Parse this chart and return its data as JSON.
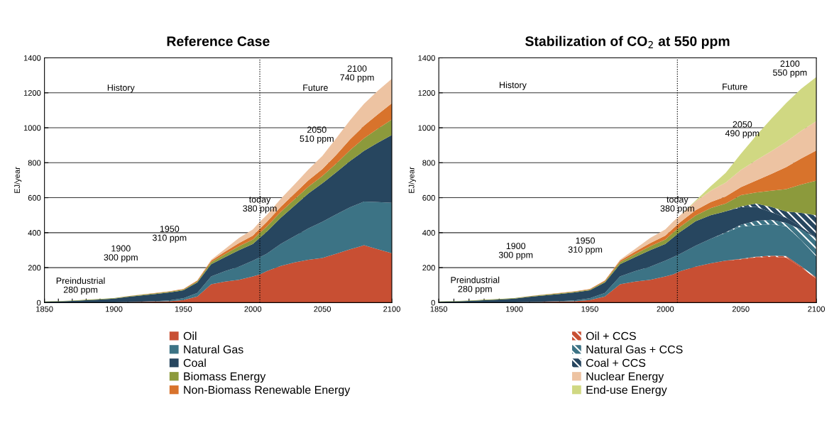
{
  "chart_data": [
    {
      "type": "area",
      "stacked": true,
      "title": "Reference Case",
      "ylabel": "EJ/year",
      "x": [
        1850,
        1860,
        1870,
        1880,
        1890,
        1900,
        1910,
        1920,
        1930,
        1940,
        1950,
        1960,
        1970,
        1980,
        1990,
        2000,
        2005,
        2010,
        2020,
        2030,
        2040,
        2050,
        2060,
        2070,
        2080,
        2090,
        2100
      ],
      "series": [
        {
          "name": "Oil",
          "color": "#c84f33",
          "values": [
            0,
            0,
            0,
            0,
            0,
            1,
            2,
            4,
            6,
            8,
            15,
            35,
            105,
            120,
            130,
            150,
            161,
            180,
            210,
            230,
            245,
            255,
            280,
            305,
            328,
            305,
            283
          ]
        },
        {
          "name": "Natural Gas",
          "color": "#3c7385",
          "values": [
            0,
            0,
            0,
            0,
            0,
            0,
            1,
            2,
            3,
            5,
            10,
            20,
            45,
            60,
            75,
            90,
            98,
            100,
            125,
            150,
            180,
            207,
            225,
            240,
            250,
            270,
            288
          ]
        },
        {
          "name": "Coal",
          "color": "#27465f",
          "values": [
            5,
            7,
            10,
            14,
            18,
            22,
            30,
            35,
            40,
            45,
            45,
            60,
            70,
            80,
            95,
            95,
            112,
            125,
            150,
            175,
            200,
            220,
            240,
            265,
            290,
            340,
            388
          ]
        },
        {
          "name": "Biomass Energy",
          "color": "#8c9a3c",
          "values": [
            2,
            2,
            2,
            3,
            3,
            3,
            3,
            4,
            4,
            4,
            5,
            6,
            12,
            18,
            22,
            26,
            28,
            30,
            33,
            36,
            38,
            42,
            50,
            62,
            72,
            80,
            88
          ]
        },
        {
          "name": "Non-Biomass Renewable Energy",
          "color": "#d8732c",
          "values": [
            0,
            0,
            0,
            0,
            0,
            0,
            1,
            1,
            2,
            2,
            3,
            5,
            8,
            14,
            18,
            22,
            24,
            26,
            30,
            33,
            37,
            40,
            50,
            62,
            72,
            82,
            93
          ]
        },
        {
          "color": "#edc3a2",
          "values": [
            0,
            0,
            0,
            0,
            0,
            0,
            0,
            0,
            0,
            0,
            0,
            1,
            5,
            15,
            30,
            36,
            39,
            40,
            45,
            52,
            62,
            75,
            95,
            110,
            125,
            135,
            140
          ]
        }
      ],
      "xlim": [
        1850,
        2100
      ],
      "xticks": [
        1850,
        {
          "value": 1860,
          "label": null
        },
        {
          "value": 1870,
          "label": null
        },
        {
          "value": 1880,
          "label": null
        },
        {
          "value": 1890,
          "label": null
        },
        1900,
        {
          "value": 1910,
          "label": null
        },
        {
          "value": 1920,
          "label": null
        },
        {
          "value": 1930,
          "label": null
        },
        {
          "value": 1940,
          "label": null
        },
        1950,
        {
          "value": 1960,
          "label": null
        },
        {
          "value": 1970,
          "label": null
        },
        {
          "value": 1980,
          "label": null
        },
        {
          "value": 1990,
          "label": null
        },
        2000,
        {
          "value": 2010,
          "label": null
        },
        {
          "value": 2020,
          "label": null
        },
        {
          "value": 2030,
          "label": null
        },
        {
          "value": 2040,
          "label": null
        },
        2050,
        {
          "value": 2060,
          "label": null
        },
        {
          "value": 2070,
          "label": null
        },
        {
          "value": 2080,
          "label": null
        },
        {
          "value": 2090,
          "label": null
        },
        2100
      ],
      "ylim": [
        0,
        1400
      ],
      "yticks": [
        0,
        200,
        400,
        600,
        800,
        1000,
        1200,
        1400
      ],
      "grid": "y",
      "legend": "bottom",
      "ref_lines": [
        {
          "axis": "x",
          "value": 2005,
          "color": "#000000",
          "line_style": "dotted"
        }
      ],
      "annotations": [
        "History",
        "Future",
        "Preindustrial\n280 ppm",
        "1900\n300 ppm",
        "1950\n310 ppm",
        "today\n380 ppm",
        "2050\n510 ppm",
        "2100\n740 ppm"
      ]
    },
    {
      "type": "area",
      "stacked": true,
      "title": "Stabilization of CO$_{2}$ at 550 ppm",
      "ylabel": "EJ/year",
      "x": [
        1850,
        1860,
        1870,
        1880,
        1890,
        1900,
        1910,
        1920,
        1930,
        1940,
        1950,
        1960,
        1970,
        1980,
        1990,
        2000,
        2005,
        2010,
        2020,
        2030,
        2040,
        2050,
        2060,
        2070,
        2080,
        2090,
        2100
      ],
      "series": [
        {
          "color": "#c84f33",
          "values": [
            0,
            0,
            0,
            0,
            0,
            1,
            2,
            4,
            6,
            8,
            15,
            35,
            105,
            120,
            130,
            150,
            161,
            180,
            205,
            225,
            240,
            248,
            258,
            262,
            258,
            200,
            137
          ]
        },
        {
          "name": "Oil + CCS",
          "color": "#c84f33",
          "values": [
            0,
            0,
            0,
            0,
            0,
            0,
            0,
            0,
            0,
            0,
            0,
            0,
            0,
            0,
            0,
            0,
            0,
            0,
            0,
            0,
            0,
            2,
            4,
            6,
            8,
            8,
            8
          ]
        },
        {
          "color": "#3c7385",
          "values": [
            0,
            0,
            0,
            0,
            0,
            0,
            1,
            2,
            3,
            5,
            10,
            20,
            45,
            60,
            75,
            90,
            98,
            100,
            120,
            140,
            160,
            185,
            180,
            180,
            170,
            150,
            119
          ]
        },
        {
          "name": "Natural Gas + CCS",
          "color": "#3c7385",
          "values": [
            0,
            0,
            0,
            0,
            0,
            0,
            0,
            0,
            0,
            0,
            0,
            0,
            0,
            0,
            0,
            0,
            0,
            0,
            0,
            0,
            2,
            10,
            25,
            25,
            20,
            60,
            106
          ]
        },
        {
          "color": "#27465f",
          "values": [
            5,
            7,
            10,
            14,
            18,
            22,
            30,
            35,
            40,
            45,
            45,
            60,
            70,
            80,
            95,
            95,
            112,
            125,
            140,
            135,
            120,
            100,
            80,
            45,
            30,
            15,
            0
          ]
        },
        {
          "name": "Coal + CCS",
          "color": "#27465f",
          "values": [
            0,
            0,
            0,
            0,
            0,
            0,
            0,
            0,
            0,
            0,
            0,
            0,
            0,
            0,
            0,
            0,
            0,
            0,
            0,
            0,
            0,
            5,
            20,
            30,
            35,
            80,
            130
          ]
        },
        {
          "color": "#8c9a3c",
          "values": [
            2,
            2,
            2,
            3,
            3,
            3,
            3,
            4,
            4,
            4,
            5,
            6,
            12,
            18,
            22,
            26,
            28,
            30,
            33,
            40,
            45,
            64,
            63,
            92,
            128,
            162,
            198
          ]
        },
        {
          "color": "#d8732c",
          "values": [
            0,
            0,
            0,
            0,
            0,
            0,
            1,
            1,
            2,
            2,
            3,
            5,
            8,
            14,
            18,
            22,
            24,
            26,
            30,
            35,
            40,
            46,
            68,
            95,
            126,
            150,
            172
          ]
        },
        {
          "name": "Nuclear Energy",
          "color": "#edc3a2",
          "values": [
            0,
            0,
            0,
            0,
            0,
            0,
            0,
            0,
            0,
            0,
            0,
            1,
            5,
            15,
            30,
            36,
            39,
            40,
            50,
            65,
            80,
            99,
            115,
            130,
            145,
            158,
            168
          ]
        },
        {
          "name": "End-use Energy",
          "color": "#d0d882",
          "values": [
            0,
            0,
            0,
            0,
            0,
            0,
            0,
            0,
            0,
            0,
            0,
            0,
            0,
            0,
            0,
            0,
            0,
            0,
            5,
            25,
            55,
            92,
            140,
            185,
            221,
            240,
            252
          ]
        }
      ],
      "xlim": [
        1850,
        2100
      ],
      "xticks": [
        1850,
        {
          "value": 1860,
          "label": null
        },
        {
          "value": 1870,
          "label": null
        },
        {
          "value": 1880,
          "label": null
        },
        {
          "value": 1890,
          "label": null
        },
        1900,
        {
          "value": 1910,
          "label": null
        },
        {
          "value": 1920,
          "label": null
        },
        {
          "value": 1930,
          "label": null
        },
        {
          "value": 1940,
          "label": null
        },
        1950,
        {
          "value": 1960,
          "label": null
        },
        {
          "value": 1970,
          "label": null
        },
        {
          "value": 1980,
          "label": null
        },
        {
          "value": 1990,
          "label": null
        },
        2000,
        {
          "value": 2010,
          "label": null
        },
        {
          "value": 2020,
          "label": null
        },
        {
          "value": 2030,
          "label": null
        },
        {
          "value": 2040,
          "label": null
        },
        2050,
        {
          "value": 2060,
          "label": null
        },
        {
          "value": 2070,
          "label": null
        },
        {
          "value": 2080,
          "label": null
        },
        {
          "value": 2090,
          "label": null
        },
        2100
      ],
      "ylim": [
        0,
        1400
      ],
      "yticks": [
        0,
        200,
        400,
        600,
        800,
        1000,
        1200,
        1400
      ],
      "grid": "y",
      "legend": "bottom",
      "ref_lines": [
        {
          "axis": "x",
          "value": 2008,
          "color": "#000000",
          "line_style": "dotted"
        }
      ],
      "annotations": [
        "History",
        "Future",
        "Preindustrial\n280 ppm",
        "1900\n300 ppm",
        "1950\n310 ppm",
        "today\n380 ppm",
        "2050\n490 ppm",
        "2100\n550 ppm"
      ]
    }
  ]
}
